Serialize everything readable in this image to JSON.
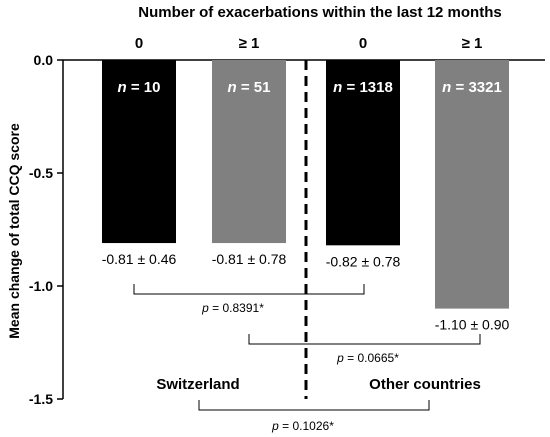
{
  "chart_data": {
    "type": "bar",
    "title": "Number of exacerbations within the last 12 months",
    "ylabel": "Mean change of total CCQ score",
    "xlabel": "",
    "ylim": [
      -1.5,
      0.0
    ],
    "yticks": [
      "0.0",
      "-0.5",
      "-1.0",
      "-1.5"
    ],
    "ytick_values": [
      0.0,
      -0.5,
      -1.0,
      -1.5
    ],
    "grid": false,
    "categories": [
      "0",
      "≥ 1",
      "0",
      "≥ 1"
    ],
    "n_labels": [
      "10",
      "51",
      "1318",
      "3321"
    ],
    "n_prefix": "n",
    "values": [
      -0.81,
      -0.81,
      -0.82,
      -1.1
    ],
    "value_labels": [
      "-0.81 ± 0.46",
      "-0.81 ± 0.78",
      "-0.82 ± 0.78",
      "-1.10 ± 0.90"
    ],
    "bar_colors": [
      "#000000",
      "#808080",
      "#000000",
      "#808080"
    ],
    "groups": [
      "Switzerland",
      "Other countries"
    ],
    "comparisons": [
      {
        "label": "p = 0.8391*",
        "p_symbol": "p",
        "p_value": "= 0.8391*"
      },
      {
        "label": "p = 0.0665*",
        "p_symbol": "p",
        "p_value": "= 0.0665*"
      },
      {
        "label": "p = 0.1026*",
        "p_symbol": "p",
        "p_value": "= 0.1026*"
      }
    ]
  }
}
